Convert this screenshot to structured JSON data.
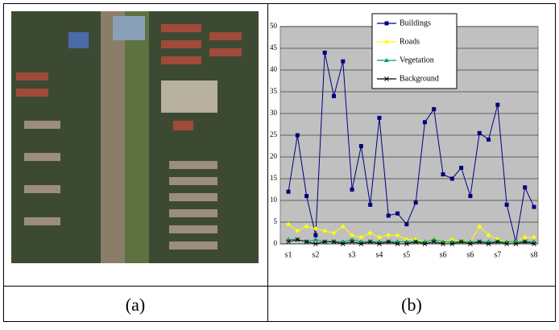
{
  "chart_data": {
    "type": "line",
    "categories": [
      "s1",
      null,
      null,
      "s2",
      null,
      null,
      null,
      "s3",
      null,
      null,
      "s4",
      null,
      null,
      "s5",
      null,
      null,
      null,
      "s6",
      null,
      null,
      "s6",
      null,
      null,
      "s7",
      null,
      null,
      null,
      "s8"
    ],
    "series": [
      {
        "name": "Buildings",
        "color": "#000080",
        "marker": "square",
        "values": [
          12,
          25,
          11,
          2,
          44,
          34,
          42,
          12.5,
          22.5,
          9,
          29,
          6.5,
          7,
          4.5,
          9.5,
          28,
          31,
          16,
          15,
          17.5,
          11,
          25.5,
          24,
          32,
          9,
          0.5,
          13,
          8.5
        ]
      },
      {
        "name": "Roads",
        "color": "#ffff00",
        "marker": "diamond",
        "values": [
          4.5,
          3,
          4,
          3.5,
          3,
          2.5,
          4,
          2,
          1.5,
          2.5,
          1.5,
          2,
          2,
          1,
          1,
          0.5,
          1,
          0.5,
          1,
          0.5,
          0.5,
          4,
          2,
          1,
          0.5,
          0.5,
          1.5,
          1.5
        ]
      },
      {
        "name": "Vegetation",
        "color": "#00a060",
        "marker": "triangle",
        "values": [
          1,
          1,
          0.5,
          1,
          0.5,
          0.5,
          0.5,
          1,
          0.5,
          0.5,
          0.5,
          0.5,
          0.5,
          0.5,
          0.5,
          0.5,
          1,
          0.5,
          0.5,
          0.5,
          0.5,
          0.5,
          0.5,
          0.5,
          0.5,
          0.5,
          0.5,
          0.5
        ]
      },
      {
        "name": "Background",
        "color": "#000000",
        "marker": "x",
        "values": [
          0.5,
          1,
          0.5,
          0,
          0.5,
          0.5,
          0,
          0.5,
          0,
          0.5,
          0,
          0.5,
          0,
          0,
          0.5,
          0,
          0.5,
          0,
          0,
          0.5,
          0,
          0.5,
          0,
          0.5,
          0,
          0,
          0.5,
          0
        ]
      }
    ],
    "ylim": [
      0,
      50
    ],
    "yticks": [
      0,
      5,
      10,
      15,
      20,
      25,
      30,
      35,
      40,
      45,
      50
    ],
    "grid": true
  },
  "captions": [
    "(a)",
    "(b)"
  ]
}
